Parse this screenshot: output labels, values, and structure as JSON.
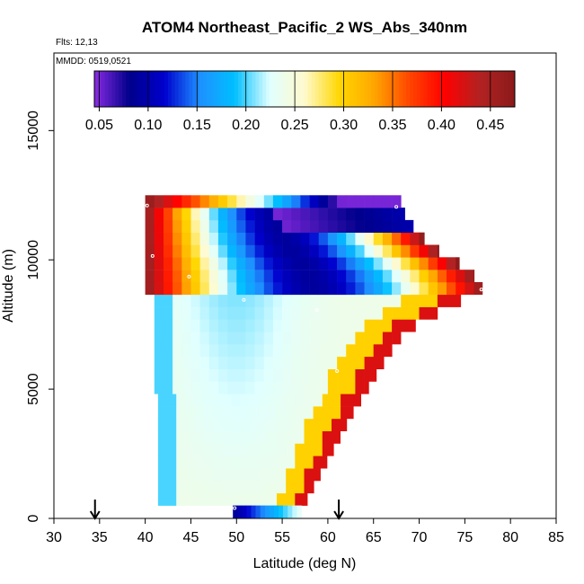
{
  "chart_data": {
    "type": "heatmap",
    "title": "ATOM4 Northeast_Pacific_2 WS_Abs_340nm",
    "flights_label": "Flts: 12,13",
    "dates_label": "MMDD: 0519,0521",
    "xlabel": "Latitude (deg N)",
    "ylabel": "Altitude (m)",
    "xlim": [
      30,
      85
    ],
    "ylim": [
      0,
      18000
    ],
    "x_ticks": [
      "30",
      "35",
      "40",
      "45",
      "50",
      "55",
      "60",
      "65",
      "70",
      "75",
      "80",
      "85"
    ],
    "y_ticks": [
      "0",
      "5000",
      "10000",
      "15000"
    ],
    "colorbar": {
      "range": [
        0.045,
        0.475
      ],
      "ticks": [
        "0.05",
        "0.10",
        "0.15",
        "0.20",
        "0.25",
        "0.30",
        "0.35",
        "0.40",
        "0.45"
      ],
      "colors": [
        "#8a2be2",
        "#00008b",
        "#0000cd",
        "#1e90ff",
        "#00bfff",
        "#e0ffff",
        "#fffacd",
        "#ffd700",
        "#ffa500",
        "#ff4500",
        "#ff0000",
        "#b22222",
        "#8b1a1a"
      ]
    },
    "arrows_at_latitude": [
      34.5,
      61.2
    ],
    "sample_points": [
      {
        "lat": 40.2,
        "alt": 12100
      },
      {
        "lat": 67.5,
        "alt": 12050
      },
      {
        "lat": 40.8,
        "alt": 10150
      },
      {
        "lat": 44.8,
        "alt": 9350
      },
      {
        "lat": 50.8,
        "alt": 8450
      },
      {
        "lat": 58.8,
        "alt": 8050
      },
      {
        "lat": 76.8,
        "alt": 8850
      },
      {
        "lat": 75.5,
        "alt": 8150
      },
      {
        "lat": 61.0,
        "alt": 5700
      },
      {
        "lat": 49.8,
        "alt": 400
      }
    ],
    "grid": false
  }
}
